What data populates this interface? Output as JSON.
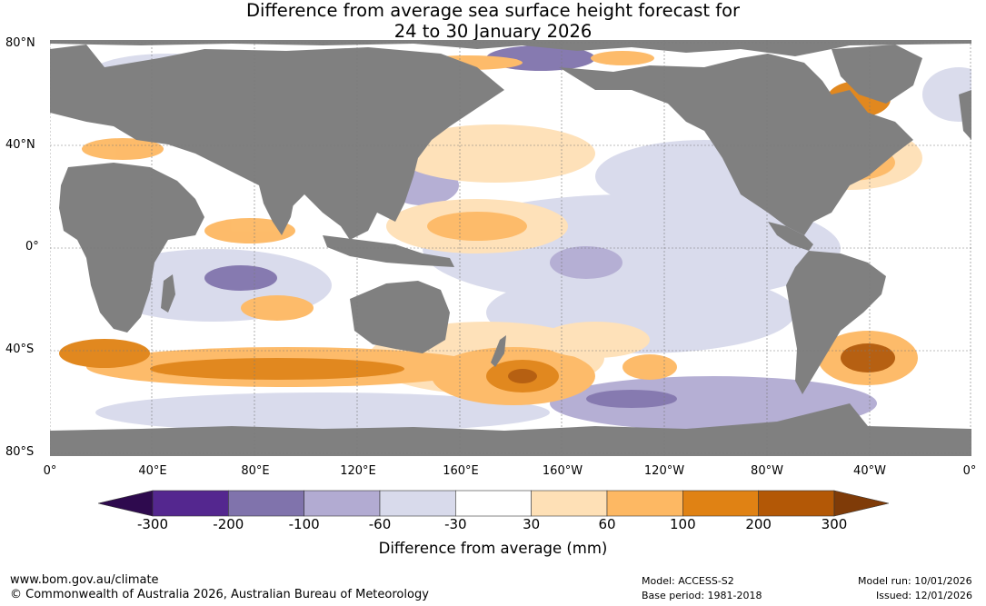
{
  "title": {
    "line1": "Difference from average sea surface height forecast for",
    "line2": "24 to 30 January 2026"
  },
  "map": {
    "lat_labels": [
      "80°N",
      "40°N",
      "0°",
      "40°S",
      "80°S"
    ],
    "lon_labels": [
      "0°",
      "40°E",
      "80°E",
      "120°E",
      "160°E",
      "160°W",
      "120°W",
      "80°W",
      "40°W",
      "0°"
    ],
    "colors": {
      "land": "#808080",
      "ocean_base": "#ffffff",
      "grid": "#7a7a7a"
    }
  },
  "colorbar": {
    "ticks": [
      "-300",
      "-200",
      "-100",
      "-60",
      "-30",
      "30",
      "60",
      "100",
      "200",
      "300"
    ],
    "colors": [
      "#2e0a4e",
      "#54278f",
      "#8073ac",
      "#b2abd2",
      "#d8daeb",
      "#ffffff",
      "#fee0b6",
      "#fdb863",
      "#e08214",
      "#b35806",
      "#7f3b08"
    ],
    "title": "Difference from average (mm)"
  },
  "footer": {
    "url": "www.bom.gov.au/climate",
    "copyright": "© Commonwealth of Australia 2026, Australian Bureau of Meteorology",
    "model": "Model: ACCESS-S2",
    "base_period": "Base period: 1981-2018",
    "model_run": "Model run: 10/01/2026",
    "issued": "Issued: 12/01/2026"
  }
}
